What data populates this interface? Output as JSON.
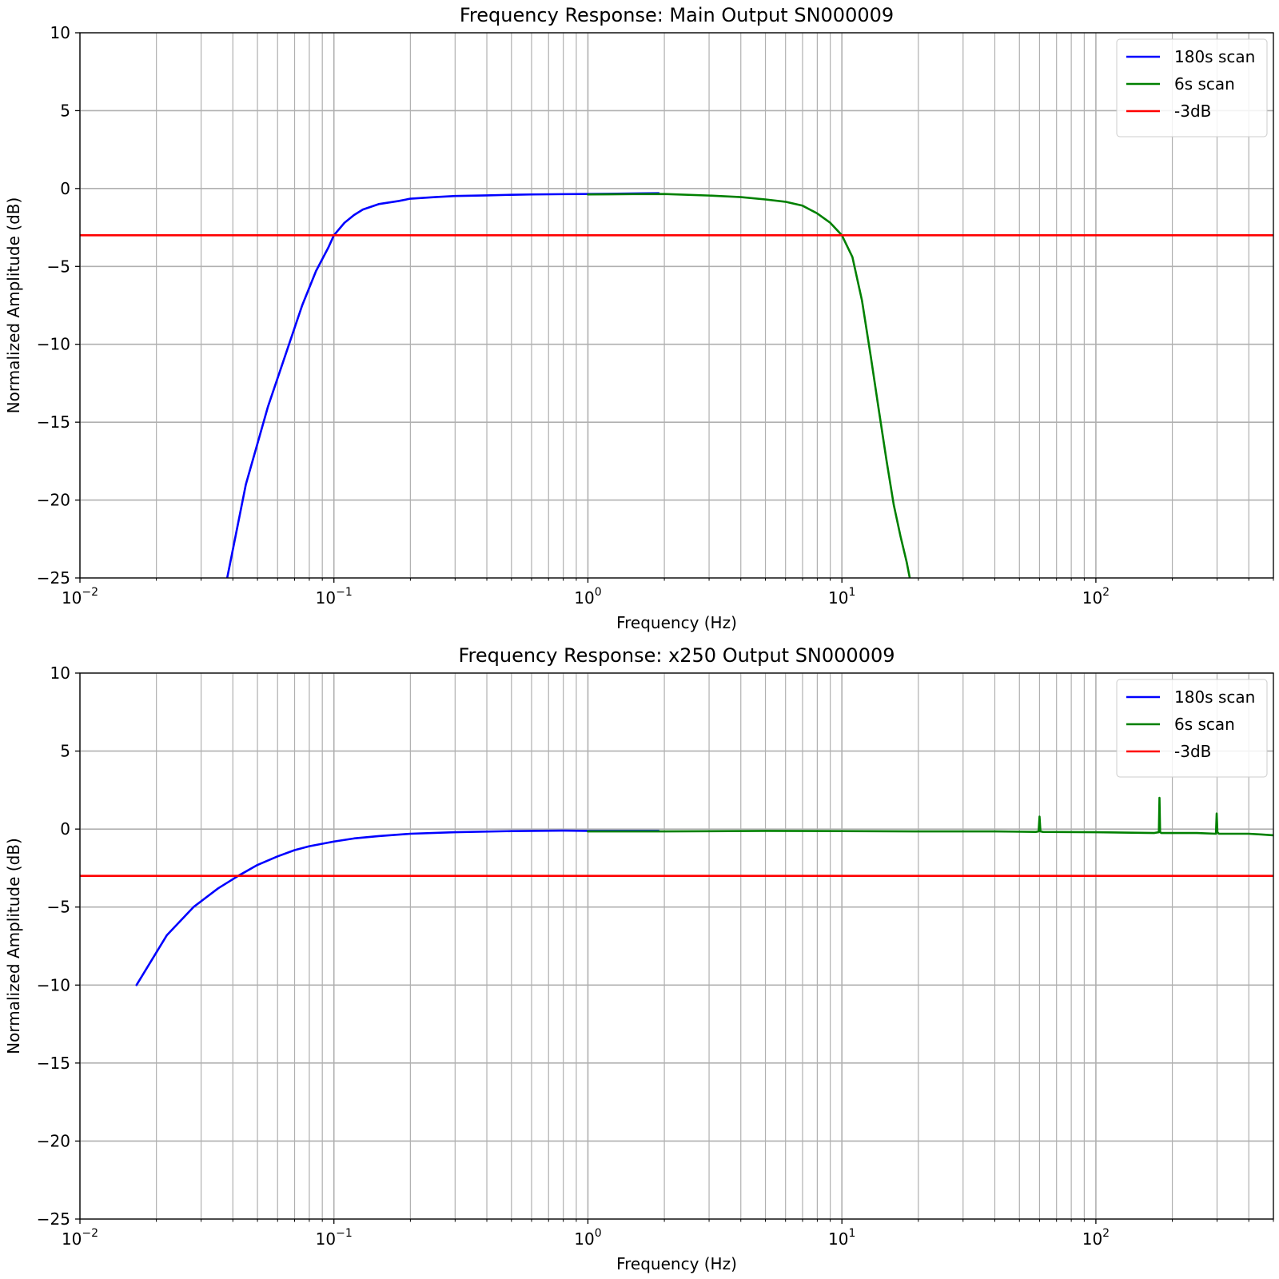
{
  "chart_data": [
    {
      "type": "line",
      "title": "Frequency Response: Main Output SN000009",
      "xlabel": "Frequency (Hz)",
      "ylabel": "Normalized Amplitude (dB)",
      "xscale": "log",
      "xlim": [
        0.01,
        500
      ],
      "ylim": [
        -25,
        10
      ],
      "x_ticks": [
        {
          "value": 0.01,
          "base": "10",
          "exp": "−2"
        },
        {
          "value": 0.1,
          "base": "10",
          "exp": "−1"
        },
        {
          "value": 1,
          "base": "10",
          "exp": "0"
        },
        {
          "value": 10,
          "base": "10",
          "exp": "1"
        },
        {
          "value": 100,
          "base": "10",
          "exp": "2"
        }
      ],
      "y_ticks": [
        {
          "value": 10,
          "label": "10"
        },
        {
          "value": 5,
          "label": "5"
        },
        {
          "value": 0,
          "label": "0"
        },
        {
          "value": -5,
          "label": "−5"
        },
        {
          "value": -10,
          "label": "−10"
        },
        {
          "value": -15,
          "label": "−15"
        },
        {
          "value": -20,
          "label": "−20"
        },
        {
          "value": -25,
          "label": "−25"
        }
      ],
      "grid": true,
      "legend_position": "top-right",
      "series": [
        {
          "name": "180s scan",
          "color": "#0000ff",
          "x": [
            0.038,
            0.045,
            0.055,
            0.065,
            0.075,
            0.085,
            0.095,
            0.1,
            0.11,
            0.12,
            0.13,
            0.15,
            0.18,
            0.2,
            0.25,
            0.3,
            0.4,
            0.5,
            0.6,
            0.8,
            1.0,
            1.3,
            1.6,
            1.9
          ],
          "y": [
            -25,
            -19,
            -14,
            -10.5,
            -7.5,
            -5.3,
            -3.8,
            -3.0,
            -2.2,
            -1.7,
            -1.35,
            -1.0,
            -0.8,
            -0.65,
            -0.55,
            -0.48,
            -0.44,
            -0.4,
            -0.38,
            -0.36,
            -0.35,
            -0.33,
            -0.31,
            -0.3
          ]
        },
        {
          "name": "6s scan",
          "color": "#008000",
          "x": [
            1.0,
            1.5,
            2,
            3,
            4,
            5,
            6,
            7,
            8,
            9,
            10,
            11,
            12,
            13,
            14,
            15,
            16,
            17,
            18,
            18.5
          ],
          "y": [
            -0.38,
            -0.36,
            -0.35,
            -0.45,
            -0.55,
            -0.7,
            -0.85,
            -1.1,
            -1.6,
            -2.2,
            -3.0,
            -4.4,
            -7.2,
            -10.8,
            -14.3,
            -17.5,
            -20.3,
            -22.3,
            -24.0,
            -25
          ]
        },
        {
          "name": "-3dB",
          "color": "#ff0000",
          "x": [
            0.01,
            500
          ],
          "y": [
            -3,
            -3
          ]
        }
      ]
    },
    {
      "type": "line",
      "title": "Frequency Response: x250 Output SN000009",
      "xlabel": "Frequency (Hz)",
      "ylabel": "Normalized Amplitude (dB)",
      "xscale": "log",
      "xlim": [
        0.01,
        500
      ],
      "ylim": [
        -25,
        10
      ],
      "x_ticks": [
        {
          "value": 0.01,
          "base": "10",
          "exp": "−2"
        },
        {
          "value": 0.1,
          "base": "10",
          "exp": "−1"
        },
        {
          "value": 1,
          "base": "10",
          "exp": "0"
        },
        {
          "value": 10,
          "base": "10",
          "exp": "1"
        },
        {
          "value": 100,
          "base": "10",
          "exp": "2"
        }
      ],
      "y_ticks": [
        {
          "value": 10,
          "label": "10"
        },
        {
          "value": 5,
          "label": "5"
        },
        {
          "value": 0,
          "label": "0"
        },
        {
          "value": -5,
          "label": "−5"
        },
        {
          "value": -10,
          "label": "−10"
        },
        {
          "value": -15,
          "label": "−15"
        },
        {
          "value": -20,
          "label": "−20"
        },
        {
          "value": -25,
          "label": "−25"
        }
      ],
      "grid": true,
      "legend_position": "top-right",
      "series": [
        {
          "name": "180s scan",
          "color": "#0000ff",
          "x": [
            0.0167,
            0.022,
            0.028,
            0.035,
            0.042,
            0.05,
            0.06,
            0.07,
            0.08,
            0.1,
            0.12,
            0.15,
            0.2,
            0.3,
            0.5,
            0.8,
            1.0,
            1.5,
            1.9
          ],
          "y": [
            -10,
            -6.8,
            -5.0,
            -3.8,
            -3.0,
            -2.3,
            -1.75,
            -1.35,
            -1.1,
            -0.8,
            -0.6,
            -0.45,
            -0.3,
            -0.2,
            -0.13,
            -0.1,
            -0.12,
            -0.12,
            -0.12
          ]
        },
        {
          "name": "6s scan",
          "color": "#008000",
          "x": [
            1.0,
            2,
            5,
            10,
            20,
            40,
            58,
            59.5,
            60,
            60.5,
            62,
            100,
            170,
            177,
            178,
            179,
            181,
            250,
            297,
            299,
            301,
            305,
            350,
            400,
            450,
            500
          ],
          "y": [
            -0.15,
            -0.15,
            -0.12,
            -0.13,
            -0.15,
            -0.15,
            -0.18,
            -0.15,
            0.8,
            -0.15,
            -0.18,
            -0.2,
            -0.25,
            -0.2,
            2.0,
            -0.2,
            -0.25,
            -0.25,
            -0.3,
            1.0,
            -0.2,
            -0.3,
            -0.3,
            -0.3,
            -0.35,
            -0.4
          ]
        },
        {
          "name": "-3dB",
          "color": "#ff0000",
          "x": [
            0.01,
            500
          ],
          "y": [
            -3,
            -3
          ]
        }
      ]
    }
  ]
}
